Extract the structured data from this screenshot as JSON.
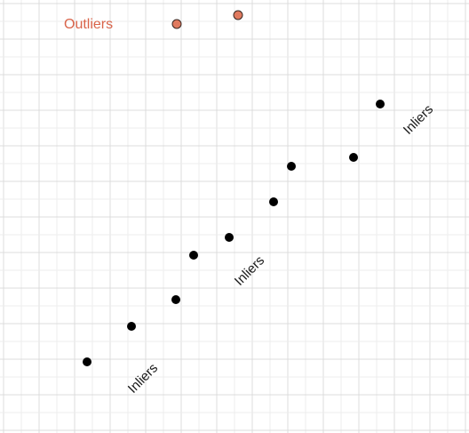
{
  "colors": {
    "background": "#ffffff",
    "grid_minor": "#ededed",
    "grid_major": "#dcdcdc",
    "inlier_fill": "#000000",
    "outlier_fill": "#e07a5f",
    "outlier_stroke": "#3a2a25",
    "outlier_label": "#d9644a",
    "inlier_label": "#1a1a1a"
  },
  "labels": {
    "outliers": "Outliers",
    "inliers_bottom": "Inliers",
    "inliers_middle": "Inliers",
    "inliers_top": "Inliers"
  },
  "points": {
    "outliers": [
      {
        "id": "outlier-1"
      },
      {
        "id": "outlier-2"
      }
    ],
    "inliers": [
      {
        "id": "inlier-1"
      },
      {
        "id": "inlier-2"
      },
      {
        "id": "inlier-3"
      },
      {
        "id": "inlier-4"
      },
      {
        "id": "inlier-5"
      },
      {
        "id": "inlier-6"
      },
      {
        "id": "inlier-7"
      },
      {
        "id": "inlier-8"
      },
      {
        "id": "inlier-9"
      }
    ]
  }
}
